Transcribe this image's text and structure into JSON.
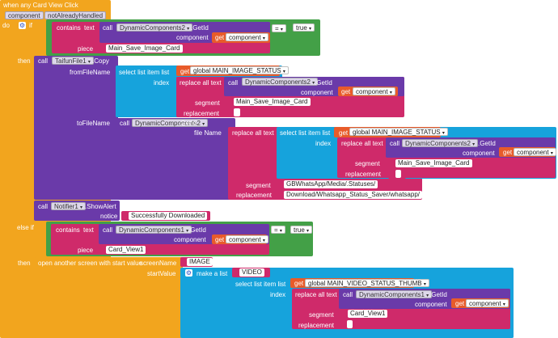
{
  "event": {
    "header": "when any Card View Click",
    "param_component": "component",
    "param_handled": "notAlreadyHandled",
    "do": "do"
  },
  "if1": {
    "kw": "if",
    "contains": "contains",
    "text": "text",
    "call": "call",
    "comp": "DynamicComponents2",
    "method": ".GetId",
    "component_lbl": "component",
    "get": "get",
    "get_var": "component",
    "piece_lbl": "piece",
    "piece_str": "Main_Save_Image_Card",
    "eq": "=",
    "true_val": "true"
  },
  "then1": "then",
  "copy": {
    "call": "call",
    "comp": "TaifunFile1",
    "method": ".Copy",
    "from_lbl": "fromFileName",
    "to_lbl": "toFileName"
  },
  "from": {
    "select": "select list item  list",
    "get": "get",
    "global": "global MAIN_IMAGE_STATUS",
    "index_lbl": "index",
    "replace": "replace all text",
    "call": "call",
    "comp": "DynamicComponents2",
    "method": ".GetId",
    "component_lbl": "component",
    "get2": "get",
    "get_var": "component",
    "segment_lbl": "segment",
    "segment_str": "Main_Save_Image_Card",
    "replacement_lbl": "replacement",
    "replacement_str": ""
  },
  "to": {
    "call": "call",
    "comp": "DynamicComponents2",
    "method": ".GetId",
    "filename_lbl": "file Name",
    "replace": "replace all text",
    "select": "select list item  list",
    "get": "get",
    "global": "global MAIN_IMAGE_STATUS",
    "index_lbl": "index",
    "replace2": "replace all text",
    "call2": "call",
    "component_lbl": "component",
    "get2": "get",
    "get_var": "component",
    "segment_lbl": "segment",
    "segment_str": "Main_Save_Image_Card",
    "replacement_lbl": "replacement",
    "replacement_str": "",
    "segment2_lbl": "segment",
    "segment2_str": "GBWhatsApp/Media/.Statuses/",
    "replacement2_lbl": "replacement",
    "replacement2_str": "Download/Whatsapp_Status_Saver/whatsapp/"
  },
  "alert": {
    "call": "call",
    "comp": "Notifier1",
    "method": ".ShowAlert",
    "notice_lbl": "notice",
    "notice_str": "Successfully Downloaded"
  },
  "elseif": {
    "kw": "else if",
    "contains": "contains",
    "text": "text",
    "call": "call",
    "comp": "DynamicComponents1",
    "method": ".GetId",
    "component_lbl": "component",
    "get": "get",
    "get_var": "component",
    "piece_lbl": "piece",
    "piece_str": "Card_View1",
    "eq": "=",
    "true_val": "true"
  },
  "then2": {
    "kw": "then",
    "open": "open another screen with start value",
    "screen_lbl": "screenName",
    "screen_str": "IMAGE",
    "start_lbl": "startValue",
    "make": "make a list",
    "video_str": "VIDEO",
    "select": "select list item  list",
    "get": "get",
    "global": "global MAIN_VIDEO_STATUS_THUMB",
    "index_lbl": "index",
    "replace": "replace all text",
    "call": "call",
    "comp": "DynamicComponents1",
    "method": ".GetId",
    "component_lbl": "component",
    "get2": "get",
    "get_var": "component",
    "segment_lbl": "segment",
    "segment_str": "Card_View1",
    "replacement_lbl": "replacement",
    "replacement_str": ""
  },
  "colors": {
    "event": "#f2a51e",
    "control": "#43a047",
    "component": "#6a3aa9",
    "text": "#cf2a6a",
    "list": "#16a3dc",
    "variable": "#e85b2a",
    "mutator": "#2f56c9"
  }
}
